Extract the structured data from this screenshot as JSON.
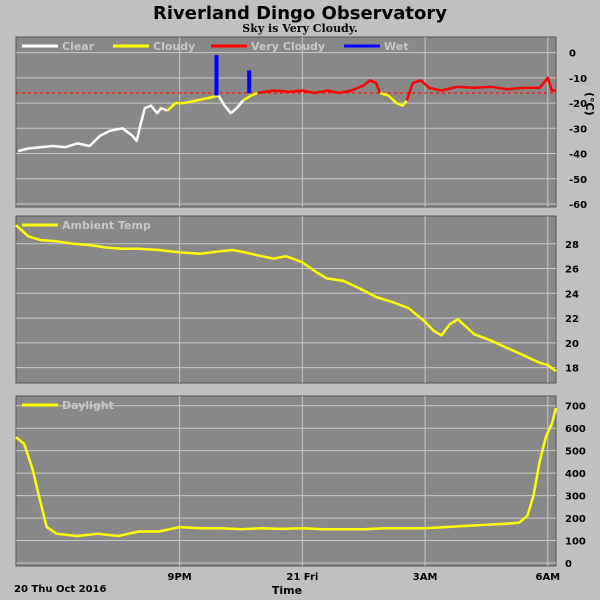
{
  "title": "Riverland Dingo Observatory",
  "subtitle": "Sky is Very Cloudy.",
  "x_axis": {
    "label": "Time",
    "start_label": "20 Thu Oct 2016",
    "range_hours": [
      17.0,
      30.2
    ],
    "ticks": [
      {
        "hour": 21,
        "label": "9PM"
      },
      {
        "hour": 24,
        "label": "21 Fri"
      },
      {
        "hour": 27,
        "label": "3AM"
      },
      {
        "hour": 30,
        "label": "6AM"
      }
    ]
  },
  "colors": {
    "background": "#c0c0c0",
    "plot_bg": "#888888",
    "grid": "#c8c8c8",
    "clear": "#ffffff",
    "cloudy": "#ffff00",
    "very_cloudy": "#ff0000",
    "wet": "#0000ff",
    "threshold": "#ff0000"
  },
  "chart_data": [
    {
      "type": "line",
      "name": "sky",
      "ylabel": "(°C)",
      "ylim": [
        -60,
        5
      ],
      "yticks": [
        0,
        -10,
        -20,
        -30,
        -40,
        -50,
        -60
      ],
      "threshold": -16,
      "legend": [
        {
          "label": "Clear",
          "color": "#ffffff"
        },
        {
          "label": "Cloudy",
          "color": "#ffff00"
        },
        {
          "label": "Very Cloudy",
          "color": "#ff0000"
        },
        {
          "label": "Wet",
          "color": "#0000ff"
        }
      ],
      "series": [
        {
          "color": "#ffffff",
          "points": [
            [
              17.05,
              -39
            ],
            [
              17.3,
              -38
            ],
            [
              17.6,
              -37.5
            ],
            [
              17.9,
              -37
            ],
            [
              18.2,
              -37.5
            ],
            [
              18.5,
              -36
            ],
            [
              18.8,
              -37
            ],
            [
              19.05,
              -33
            ],
            [
              19.3,
              -31
            ],
            [
              19.6,
              -30
            ],
            [
              19.85,
              -33
            ],
            [
              19.95,
              -35
            ],
            [
              20.05,
              -28
            ],
            [
              20.15,
              -22
            ],
            [
              20.3,
              -21
            ],
            [
              20.45,
              -24
            ],
            [
              20.55,
              -22
            ],
            [
              20.7,
              -23
            ]
          ]
        },
        {
          "color": "#ffff00",
          "points": [
            [
              20.7,
              -23
            ],
            [
              20.9,
              -20
            ],
            [
              21.1,
              -20
            ],
            [
              21.4,
              -19
            ],
            [
              21.7,
              -18
            ],
            [
              21.95,
              -17
            ]
          ]
        },
        {
          "color": "#ffffff",
          "points": [
            [
              21.95,
              -17
            ],
            [
              22.1,
              -21
            ],
            [
              22.25,
              -24
            ],
            [
              22.4,
              -22
            ],
            [
              22.55,
              -19
            ]
          ]
        },
        {
          "color": "#ffff00",
          "points": [
            [
              22.55,
              -19
            ],
            [
              22.75,
              -17
            ],
            [
              22.9,
              -16
            ]
          ]
        },
        {
          "color": "#ff0000",
          "points": [
            [
              22.9,
              -16
            ],
            [
              23.3,
              -15
            ],
            [
              23.7,
              -15.5
            ],
            [
              24.0,
              -15
            ],
            [
              24.3,
              -16
            ],
            [
              24.6,
              -15
            ],
            [
              24.9,
              -16
            ],
            [
              25.2,
              -15
            ],
            [
              25.5,
              -13
            ],
            [
              25.65,
              -11
            ],
            [
              25.8,
              -12
            ],
            [
              25.9,
              -16
            ]
          ]
        },
        {
          "color": "#ffff00",
          "points": [
            [
              25.9,
              -16
            ],
            [
              26.1,
              -17
            ],
            [
              26.3,
              -20
            ],
            [
              26.45,
              -21
            ],
            [
              26.55,
              -19
            ]
          ]
        },
        {
          "color": "#ff0000",
          "points": [
            [
              26.55,
              -19
            ],
            [
              26.7,
              -12
            ],
            [
              26.9,
              -11
            ],
            [
              27.1,
              -14
            ],
            [
              27.4,
              -15
            ],
            [
              27.8,
              -13.5
            ],
            [
              28.2,
              -14
            ],
            [
              28.6,
              -13.5
            ],
            [
              29.0,
              -14.5
            ],
            [
              29.4,
              -14
            ],
            [
              29.8,
              -14
            ],
            [
              30.0,
              -10
            ],
            [
              30.1,
              -15
            ],
            [
              30.2,
              -15
            ]
          ]
        },
        {
          "color": "#0000ff",
          "points": [
            [
              21.9,
              -1
            ],
            [
              21.9,
              -17
            ]
          ]
        },
        {
          "color": "#0000ff",
          "points": [
            [
              22.7,
              -7
            ],
            [
              22.7,
              -16
            ]
          ]
        }
      ]
    },
    {
      "type": "line",
      "name": "ambient",
      "legend": [
        {
          "label": "Ambient Temp",
          "color": "#ffff00"
        }
      ],
      "ylim": [
        17,
        30
      ],
      "yticks": [
        18,
        20,
        22,
        24,
        26,
        28
      ],
      "series": [
        {
          "color": "#ffff00",
          "points": [
            [
              17.0,
              29.5
            ],
            [
              17.3,
              28.6
            ],
            [
              17.6,
              28.3
            ],
            [
              18.0,
              28.2
            ],
            [
              18.4,
              28.0
            ],
            [
              18.8,
              27.9
            ],
            [
              19.2,
              27.7
            ],
            [
              19.6,
              27.6
            ],
            [
              20.0,
              27.6
            ],
            [
              20.5,
              27.5
            ],
            [
              21.0,
              27.3
            ],
            [
              21.5,
              27.2
            ],
            [
              22.0,
              27.4
            ],
            [
              22.3,
              27.5
            ],
            [
              22.6,
              27.3
            ],
            [
              23.0,
              27.0
            ],
            [
              23.3,
              26.8
            ],
            [
              23.6,
              27.0
            ],
            [
              24.0,
              26.5
            ],
            [
              24.3,
              25.8
            ],
            [
              24.6,
              25.2
            ],
            [
              25.0,
              25.0
            ],
            [
              25.4,
              24.4
            ],
            [
              25.8,
              23.7
            ],
            [
              26.2,
              23.3
            ],
            [
              26.6,
              22.8
            ],
            [
              27.0,
              21.7
            ],
            [
              27.2,
              21.0
            ],
            [
              27.4,
              20.6
            ],
            [
              27.6,
              21.5
            ],
            [
              27.8,
              21.9
            ],
            [
              28.0,
              21.3
            ],
            [
              28.2,
              20.7
            ],
            [
              28.6,
              20.2
            ],
            [
              29.0,
              19.6
            ],
            [
              29.4,
              19.0
            ],
            [
              29.8,
              18.4
            ],
            [
              30.0,
              18.2
            ],
            [
              30.2,
              17.7
            ]
          ]
        }
      ]
    },
    {
      "type": "line",
      "name": "daylight",
      "legend": [
        {
          "label": "Daylight",
          "color": "#ffff00"
        }
      ],
      "ylim": [
        0,
        730
      ],
      "yticks": [
        0,
        100,
        200,
        300,
        400,
        500,
        600,
        700
      ],
      "series": [
        {
          "color": "#ffff00",
          "points": [
            [
              17.0,
              560
            ],
            [
              17.2,
              530
            ],
            [
              17.4,
              420
            ],
            [
              17.6,
              270
            ],
            [
              17.75,
              160
            ],
            [
              18.0,
              130
            ],
            [
              18.5,
              120
            ],
            [
              19.0,
              130
            ],
            [
              19.5,
              120
            ],
            [
              20.0,
              140
            ],
            [
              20.5,
              140
            ],
            [
              21.0,
              160
            ],
            [
              21.5,
              155
            ],
            [
              22.0,
              155
            ],
            [
              22.5,
              150
            ],
            [
              23.0,
              155
            ],
            [
              23.5,
              152
            ],
            [
              24.0,
              155
            ],
            [
              24.5,
              150
            ],
            [
              25.0,
              150
            ],
            [
              25.5,
              150
            ],
            [
              26.0,
              155
            ],
            [
              26.5,
              155
            ],
            [
              27.0,
              155
            ],
            [
              27.5,
              160
            ],
            [
              28.0,
              165
            ],
            [
              28.5,
              170
            ],
            [
              29.0,
              175
            ],
            [
              29.3,
              180
            ],
            [
              29.5,
              210
            ],
            [
              29.65,
              300
            ],
            [
              29.8,
              450
            ],
            [
              29.95,
              560
            ],
            [
              30.1,
              620
            ],
            [
              30.2,
              690
            ]
          ]
        }
      ]
    }
  ]
}
